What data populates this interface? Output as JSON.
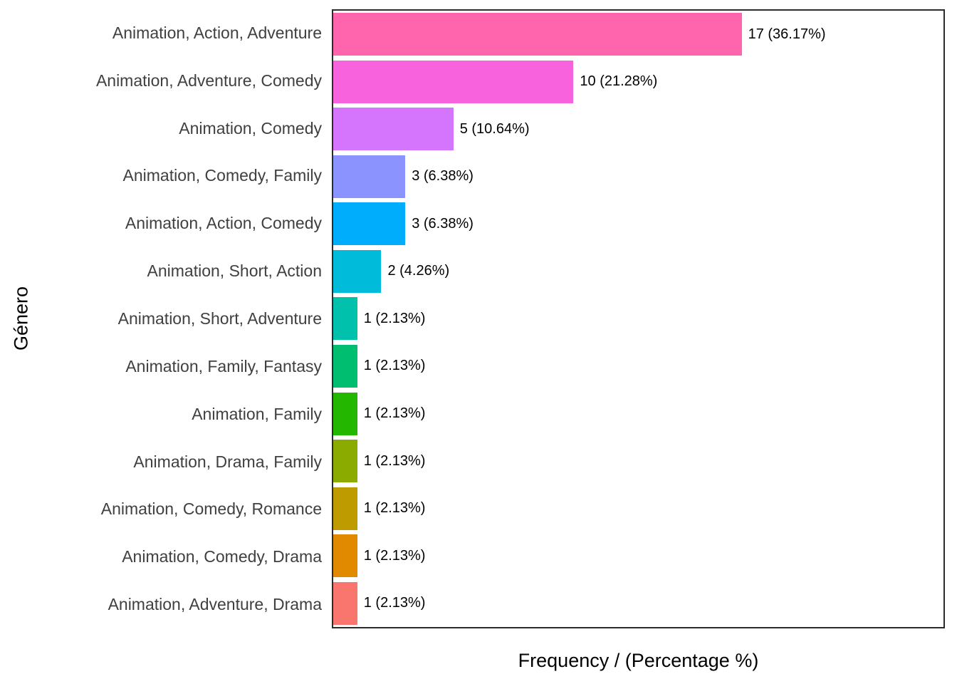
{
  "chart_data": {
    "type": "bar",
    "orientation": "horizontal",
    "title": "",
    "xlabel": "Frequency / (Percentage %)",
    "ylabel": "Género",
    "categories": [
      "Animation, Action, Adventure",
      "Animation, Adventure, Comedy",
      "Animation, Comedy",
      "Animation, Comedy, Family",
      "Animation, Action, Comedy",
      "Animation, Short, Action",
      "Animation, Short, Adventure",
      "Animation, Family, Fantasy",
      "Animation, Family",
      "Animation, Drama, Family",
      "Animation, Comedy, Romance",
      "Animation, Comedy, Drama",
      "Animation, Adventure, Drama"
    ],
    "values": [
      17,
      10,
      5,
      3,
      3,
      2,
      1,
      1,
      1,
      1,
      1,
      1,
      1
    ],
    "percentages": [
      36.17,
      21.28,
      10.64,
      6.38,
      6.38,
      4.26,
      2.13,
      2.13,
      2.13,
      2.13,
      2.13,
      2.13,
      2.13
    ],
    "annotations": [
      "17 (36.17%)",
      "10 (21.28%)",
      "5 (10.64%)",
      "3 (6.38%)",
      "3 (6.38%)",
      "2 (4.26%)",
      "1 (2.13%)",
      "1 (2.13%)",
      "1 (2.13%)",
      "1 (2.13%)",
      "1 (2.13%)",
      "1 (2.13%)",
      "1 (2.13%)"
    ],
    "colors": [
      "#FF65AC",
      "#F962DD",
      "#D575FE",
      "#8B93FF",
      "#00ACFC",
      "#00BBDA",
      "#00C1AB",
      "#00BE70",
      "#24B700",
      "#8CAB00",
      "#BE9C00",
      "#E18A00",
      "#F8766D"
    ],
    "xlim": [
      0,
      25.4
    ],
    "grid": "off",
    "legend": "none",
    "panel_border_color": "#2b2b2b",
    "axis_text_color": "#404040",
    "annotation_text_color": "#000000"
  }
}
